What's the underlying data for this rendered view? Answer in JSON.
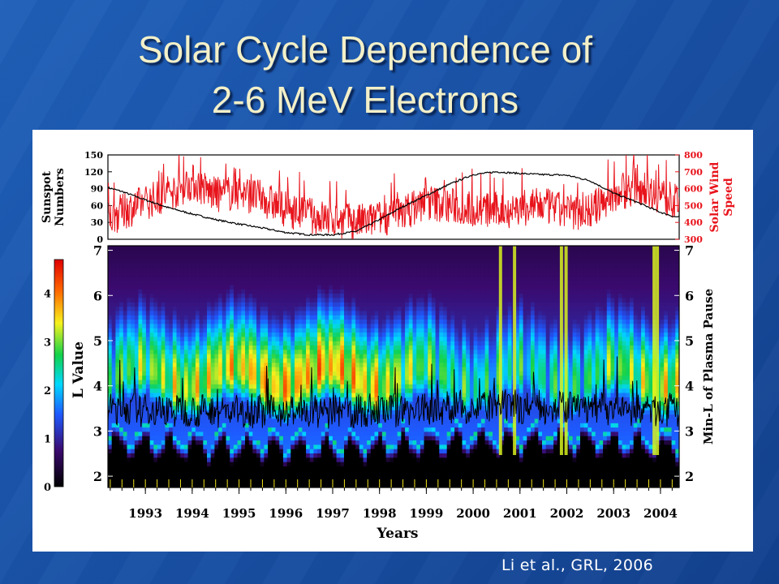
{
  "slide": {
    "title_line1": "Solar Cycle Dependence of",
    "title_line2": "2-6 MeV Electrons",
    "citation": "Li et al., GRL, 2006"
  },
  "chart_data": [
    {
      "type": "line",
      "panel": "top",
      "series": [
        {
          "name": "Sunspot Numbers",
          "color": "#000000",
          "axis": "left",
          "x": [
            1992.2,
            1992.5,
            1993.0,
            1993.5,
            1994.0,
            1994.5,
            1995.0,
            1995.5,
            1996.0,
            1996.5,
            1997.0,
            1997.5,
            1998.0,
            1998.5,
            1999.0,
            1999.5,
            2000.0,
            2000.5,
            2001.0,
            2001.5,
            2002.0,
            2002.5,
            2003.0,
            2003.5,
            2004.0,
            2004.3
          ],
          "y": [
            92,
            85,
            70,
            56,
            45,
            35,
            27,
            20,
            12,
            8,
            8,
            14,
            35,
            58,
            78,
            98,
            115,
            120,
            117,
            115,
            114,
            104,
            82,
            66,
            48,
            40
          ]
        },
        {
          "name": "Solar Wind Speed",
          "color": "#e8141c",
          "axis": "right",
          "x": [
            1992.2,
            1992.5,
            1993.0,
            1993.5,
            1994.0,
            1994.5,
            1995.0,
            1995.5,
            1996.0,
            1996.5,
            1997.0,
            1997.5,
            1998.0,
            1998.5,
            1999.0,
            1999.5,
            2000.0,
            2000.5,
            2001.0,
            2001.5,
            2002.0,
            2002.5,
            2003.0,
            2003.5,
            2004.0,
            2004.3
          ],
          "y": [
            420,
            460,
            520,
            570,
            640,
            560,
            580,
            540,
            480,
            440,
            420,
            400,
            420,
            460,
            520,
            500,
            480,
            470,
            480,
            500,
            460,
            470,
            560,
            620,
            560,
            520
          ]
        }
      ],
      "left_axis": {
        "label": "Sunspot Numbers",
        "range": [
          0,
          150
        ],
        "ticks": [
          "0",
          "30",
          "60",
          "90",
          "120",
          "150"
        ]
      },
      "right_axis": {
        "label": "Solar Wind Speed",
        "range": [
          300,
          800
        ],
        "ticks": [
          "300",
          "400",
          "500",
          "600",
          "700",
          "800"
        ]
      }
    },
    {
      "type": "heatmap",
      "panel": "bottom",
      "xlabel": "Years",
      "ylabel": "L Value",
      "right_label": "Min-L of Plasma Pause",
      "x_range": [
        1992.2,
        2004.4
      ],
      "y_range": [
        1.75,
        7.1
      ],
      "x_ticks": [
        "1993",
        "1994",
        "1995",
        "1996",
        "1997",
        "1998",
        "1999",
        "2000",
        "2001",
        "2002",
        "2003",
        "2004"
      ],
      "y_ticks": [
        "2",
        "3",
        "4",
        "5",
        "6",
        "7"
      ],
      "colorbar": {
        "range": [
          0,
          4.7
        ],
        "ticks": [
          "0",
          "1",
          "2",
          "3",
          "4"
        ]
      },
      "overlay_line": "Min-L of Plasma Pause"
    }
  ]
}
